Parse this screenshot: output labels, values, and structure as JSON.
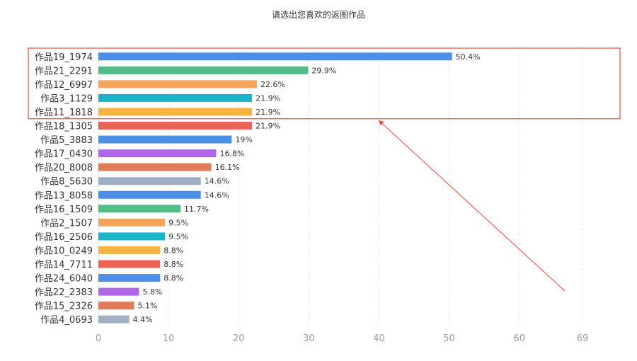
{
  "chart_data": {
    "type": "bar",
    "orientation": "horizontal",
    "title": "请选出您喜欢的返图作品",
    "xlabel": "",
    "ylabel": "",
    "xlim": [
      0,
      69
    ],
    "x_ticks": [
      0,
      10,
      20,
      30,
      40,
      50,
      60,
      69
    ],
    "grid": "vertical dashed",
    "categories": [
      "作品19_1974",
      "作品21_2291",
      "作品12_6997",
      "作品3_1129",
      "作品11_1818",
      "作品18_1305",
      "作品5_3883",
      "作品17_0430",
      "作品20_8008",
      "作品8_5630",
      "作品13_8058",
      "作品16_1509",
      "作品2_1507",
      "作品16_2506",
      "作品10_0249",
      "作品14_7711",
      "作品24_6040",
      "作品22_2383",
      "作品15_2326",
      "作品4_0693"
    ],
    "values": [
      50.4,
      29.9,
      22.6,
      21.9,
      21.9,
      21.9,
      19,
      16.8,
      16.1,
      14.6,
      14.6,
      11.7,
      9.5,
      9.5,
      8.8,
      8.8,
      8.8,
      5.8,
      5.1,
      4.4
    ],
    "value_labels": [
      "50.4%",
      "29.9%",
      "22.6%",
      "21.9%",
      "21.9%",
      "21.9%",
      "19%",
      "16.8%",
      "16.1%",
      "14.6%",
      "14.6%",
      "11.7%",
      "9.5%",
      "9.5%",
      "8.8%",
      "8.8%",
      "8.8%",
      "5.8%",
      "5.1%",
      "4.4%"
    ],
    "colors": [
      "#4e8fe6",
      "#52bd86",
      "#f5a65b",
      "#19b4c8",
      "#f7b444",
      "#ec6356",
      "#4e8fe6",
      "#b067e6",
      "#e07a58",
      "#9fb0c4"
    ],
    "highlight_box_color": "#e8473d",
    "annotation": "red box around top 5 bars with arrow"
  }
}
